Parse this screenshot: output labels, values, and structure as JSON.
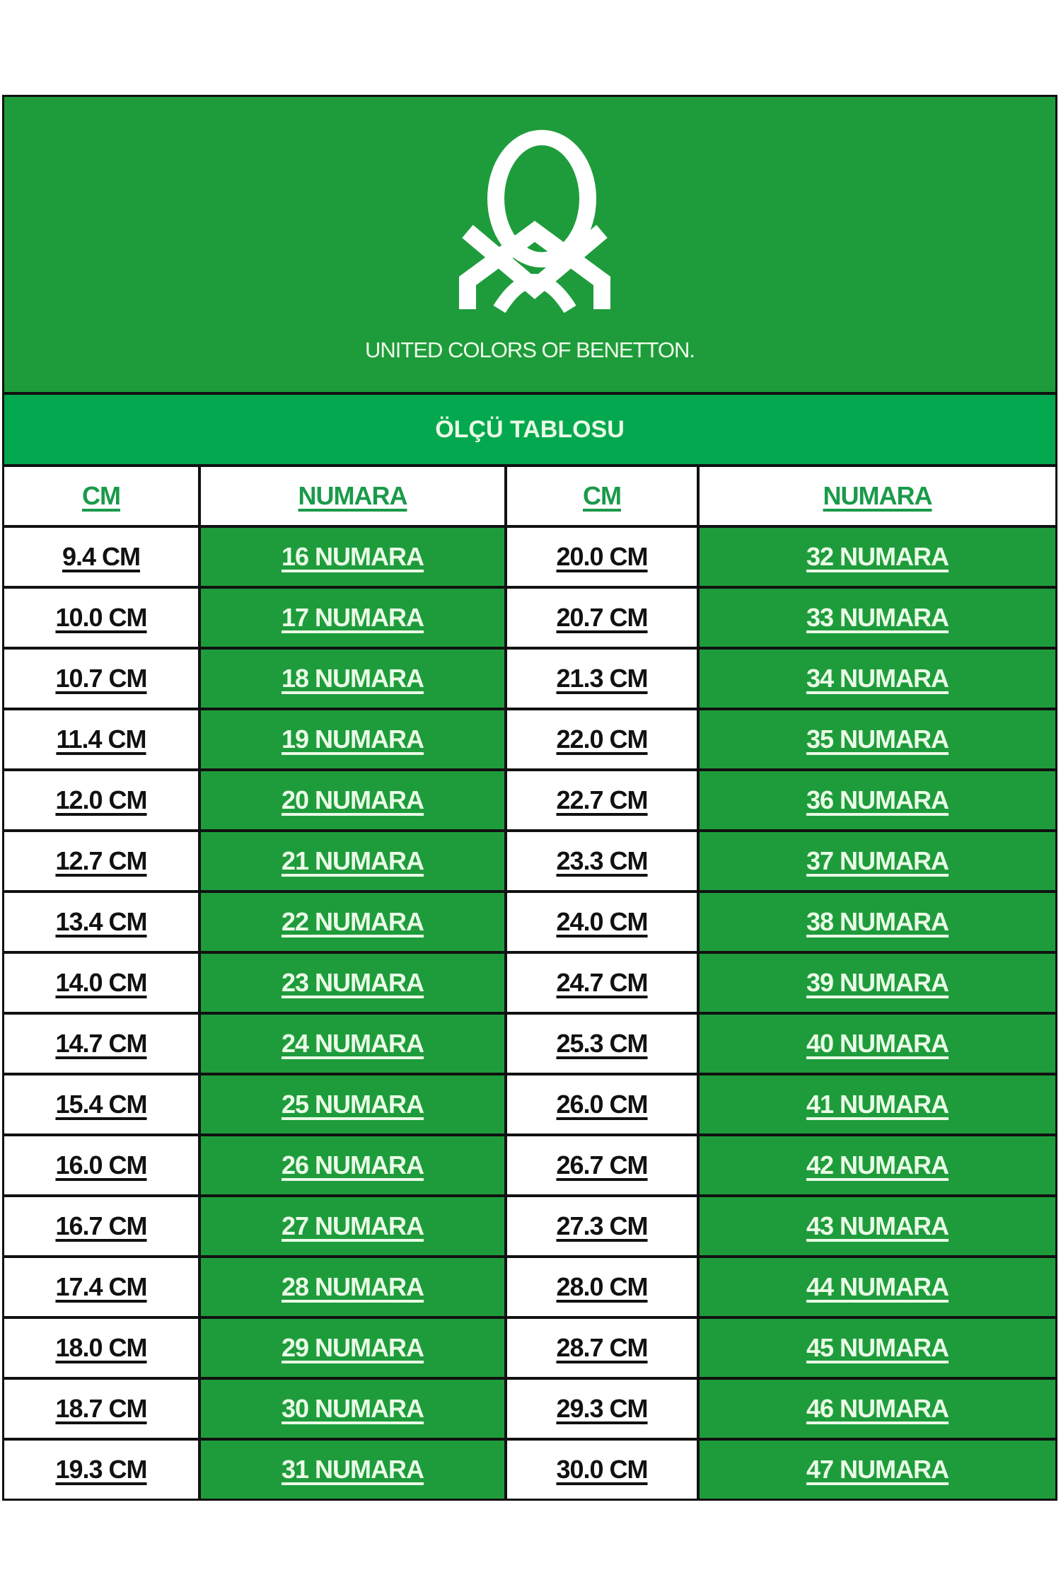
{
  "brand": {
    "name": "UNITED COLORS OF BENETTON.",
    "logo": "benetton-knot-logo"
  },
  "title": "ÖLÇÜ TABLOSU",
  "colors": {
    "green": "#1e9c3c",
    "title_green": "#04a84e",
    "header_text": "#1a9a4a"
  },
  "headers": [
    "CM",
    "NUMARA",
    "CM",
    "NUMARA"
  ],
  "rows": [
    [
      "9.4 CM",
      "16 NUMARA",
      "20.0 CM",
      "32 NUMARA"
    ],
    [
      "10.0 CM",
      "17 NUMARA",
      "20.7 CM",
      "33 NUMARA"
    ],
    [
      "10.7 CM",
      "18 NUMARA",
      "21.3 CM",
      "34 NUMARA"
    ],
    [
      "11.4 CM",
      "19 NUMARA",
      "22.0 CM",
      "35 NUMARA"
    ],
    [
      "12.0 CM",
      "20 NUMARA",
      "22.7 CM",
      "36 NUMARA"
    ],
    [
      "12.7 CM",
      "21 NUMARA",
      "23.3 CM",
      "37 NUMARA"
    ],
    [
      "13.4 CM",
      "22 NUMARA",
      "24.0 CM",
      "38 NUMARA"
    ],
    [
      "14.0 CM",
      "23 NUMARA",
      "24.7 CM",
      "39 NUMARA"
    ],
    [
      "14.7 CM",
      "24 NUMARA",
      "25.3 CM",
      "40 NUMARA"
    ],
    [
      "15.4 CM",
      "25 NUMARA",
      "26.0 CM",
      "41 NUMARA"
    ],
    [
      "16.0 CM",
      "26 NUMARA",
      "26.7 CM",
      "42 NUMARA"
    ],
    [
      "16.7 CM",
      "27 NUMARA",
      "27.3 CM",
      "43 NUMARA"
    ],
    [
      "17.4 CM",
      "28 NUMARA",
      "28.0 CM",
      "44 NUMARA"
    ],
    [
      "18.0 CM",
      "29 NUMARA",
      "28.7 CM",
      "45 NUMARA"
    ],
    [
      "18.7 CM",
      "30 NUMARA",
      "29.3 CM",
      "46 NUMARA"
    ],
    [
      "19.3 CM",
      "31 NUMARA",
      "30.0 CM",
      "47 NUMARA"
    ]
  ]
}
